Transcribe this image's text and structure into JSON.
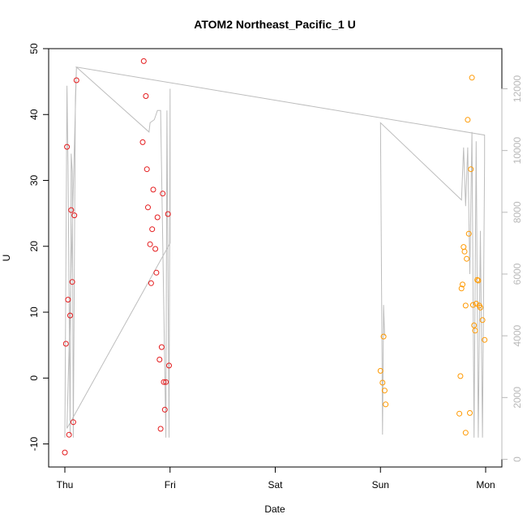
{
  "chart_data": {
    "type": "scatter",
    "title": "ATOM2 Northeast_Pacific_1 U",
    "xlabel": "Date",
    "ylabel": "U",
    "x_ticks": [
      "Thu",
      "Fri",
      "Sat",
      "Sun",
      "Mon"
    ],
    "ylim": [
      -13.5,
      50
    ],
    "y_ticks": [
      -10,
      0,
      10,
      20,
      30,
      40,
      50
    ],
    "y2_ticks": [
      0,
      2000,
      4000,
      6000,
      8000,
      10000,
      12000
    ],
    "y2lim": [
      -250,
      13300
    ],
    "colors": {
      "red_series": "#e41a1c",
      "orange_series": "#ff9900",
      "gray_line": "#bdbdbd",
      "right_axis": "#b8b8b8"
    },
    "series": [
      {
        "color": "red",
        "points": [
          {
            "x": 0.0,
            "y": -11.3
          },
          {
            "x": 0.01,
            "y": 5.2
          },
          {
            "x": 0.02,
            "y": 35.1
          },
          {
            "x": 0.03,
            "y": 11.9
          },
          {
            "x": 0.04,
            "y": -8.6
          },
          {
            "x": 0.05,
            "y": 9.5
          },
          {
            "x": 0.06,
            "y": 25.5
          },
          {
            "x": 0.07,
            "y": 14.6
          },
          {
            "x": 0.08,
            "y": -6.7
          },
          {
            "x": 0.09,
            "y": 24.7
          },
          {
            "x": 0.11,
            "y": 45.2
          },
          {
            "x": 0.75,
            "y": 48.1
          },
          {
            "x": 0.74,
            "y": 35.8
          },
          {
            "x": 0.77,
            "y": 42.8
          },
          {
            "x": 0.78,
            "y": 31.7
          },
          {
            "x": 0.79,
            "y": 25.9
          },
          {
            "x": 0.81,
            "y": 20.3
          },
          {
            "x": 0.82,
            "y": 14.4
          },
          {
            "x": 0.83,
            "y": 22.6
          },
          {
            "x": 0.84,
            "y": 28.6
          },
          {
            "x": 0.86,
            "y": 19.6
          },
          {
            "x": 0.87,
            "y": 16.0
          },
          {
            "x": 0.88,
            "y": 24.4
          },
          {
            "x": 0.9,
            "y": 2.8
          },
          {
            "x": 0.91,
            "y": -7.7
          },
          {
            "x": 0.92,
            "y": 4.7
          },
          {
            "x": 0.93,
            "y": 28.0
          },
          {
            "x": 0.94,
            "y": -0.6
          },
          {
            "x": 0.95,
            "y": -4.8
          },
          {
            "x": 0.96,
            "y": -0.6
          },
          {
            "x": 0.98,
            "y": 24.9
          },
          {
            "x": 0.99,
            "y": 1.9
          }
        ]
      },
      {
        "color": "orange",
        "points": [
          {
            "x": 3.0,
            "y": 1.1
          },
          {
            "x": 3.02,
            "y": -0.7
          },
          {
            "x": 3.03,
            "y": 6.3
          },
          {
            "x": 3.04,
            "y": -1.9
          },
          {
            "x": 3.05,
            "y": -4.0
          },
          {
            "x": 3.75,
            "y": -5.4
          },
          {
            "x": 3.76,
            "y": 0.3
          },
          {
            "x": 3.77,
            "y": 13.6
          },
          {
            "x": 3.78,
            "y": 14.2
          },
          {
            "x": 3.79,
            "y": 19.9
          },
          {
            "x": 3.8,
            "y": 19.2
          },
          {
            "x": 3.81,
            "y": 11.0
          },
          {
            "x": 3.81,
            "y": -8.3
          },
          {
            "x": 3.82,
            "y": 18.1
          },
          {
            "x": 3.83,
            "y": 39.2
          },
          {
            "x": 3.84,
            "y": 21.9
          },
          {
            "x": 3.85,
            "y": -5.3
          },
          {
            "x": 3.86,
            "y": 31.7
          },
          {
            "x": 3.87,
            "y": 45.6
          },
          {
            "x": 3.88,
            "y": 11.1
          },
          {
            "x": 3.89,
            "y": 8.0
          },
          {
            "x": 3.9,
            "y": 7.2
          },
          {
            "x": 3.91,
            "y": 11.3
          },
          {
            "x": 3.92,
            "y": 14.9
          },
          {
            "x": 3.93,
            "y": 14.8
          },
          {
            "x": 3.94,
            "y": 11.0
          },
          {
            "x": 3.95,
            "y": 10.7
          },
          {
            "x": 3.97,
            "y": 8.8
          },
          {
            "x": 3.99,
            "y": 5.8
          }
        ]
      },
      {
        "color": "gray",
        "axis": "right",
        "points": [
          {
            "x": 0.0,
            "y": 700
          },
          {
            "x": 0.02,
            "y": 12100
          },
          {
            "x": 0.03,
            "y": 9500
          },
          {
            "x": 0.05,
            "y": 800
          },
          {
            "x": 0.06,
            "y": 9900
          },
          {
            "x": 0.07,
            "y": 9300
          },
          {
            "x": 0.08,
            "y": 700
          },
          {
            "x": 0.09,
            "y": 6100
          },
          {
            "x": 0.1,
            "y": 11700
          },
          {
            "x": 0.11,
            "y": 12700
          },
          {
            "x": 0.02,
            "y": 1000
          },
          {
            "x": 1.0,
            "y": 7000
          },
          {
            "x": 1.0,
            "y": 12000
          },
          {
            "x": 0.99,
            "y": 700
          },
          {
            "x": 0.97,
            "y": 11300
          },
          {
            "x": 0.96,
            "y": 700
          },
          {
            "x": 0.91,
            "y": 11300
          },
          {
            "x": 0.88,
            "y": 11300
          },
          {
            "x": 0.85,
            "y": 11000
          },
          {
            "x": 0.81,
            "y": 10900
          },
          {
            "x": 0.8,
            "y": 10600
          },
          {
            "x": 0.11,
            "y": 12700
          },
          {
            "x": 3.99,
            "y": 10500
          },
          {
            "x": 3.99,
            "y": 9700
          },
          {
            "x": 3.97,
            "y": 700
          },
          {
            "x": 3.95,
            "y": 7400
          },
          {
            "x": 3.93,
            "y": 700
          },
          {
            "x": 3.91,
            "y": 10300
          },
          {
            "x": 3.89,
            "y": 700
          },
          {
            "x": 3.87,
            "y": 10600
          },
          {
            "x": 3.85,
            "y": 6000
          },
          {
            "x": 3.83,
            "y": 10100
          },
          {
            "x": 3.81,
            "y": 8200
          },
          {
            "x": 3.79,
            "y": 10100
          },
          {
            "x": 3.77,
            "y": 8400
          },
          {
            "x": 3.0,
            "y": 10900
          },
          {
            "x": 3.02,
            "y": 800
          },
          {
            "x": 3.03,
            "y": 5000
          },
          {
            "x": 3.04,
            "y": 4000
          }
        ]
      }
    ]
  }
}
